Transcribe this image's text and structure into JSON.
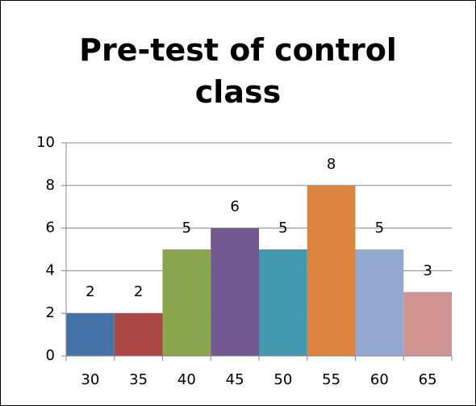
{
  "chart_data": {
    "type": "bar",
    "title": "Pre-test of control class",
    "categories": [
      "30",
      "35",
      "40",
      "45",
      "50",
      "55",
      "60",
      "65"
    ],
    "values": [
      2,
      2,
      5,
      6,
      5,
      8,
      5,
      3
    ],
    "colors": [
      "#4572a7",
      "#aa4643",
      "#89a54e",
      "#71588f",
      "#4198af",
      "#db843d",
      "#93a9cf",
      "#d19392"
    ],
    "ylim": [
      0,
      10
    ],
    "yticks": [
      0,
      2,
      4,
      6,
      8,
      10
    ],
    "grid": true
  }
}
